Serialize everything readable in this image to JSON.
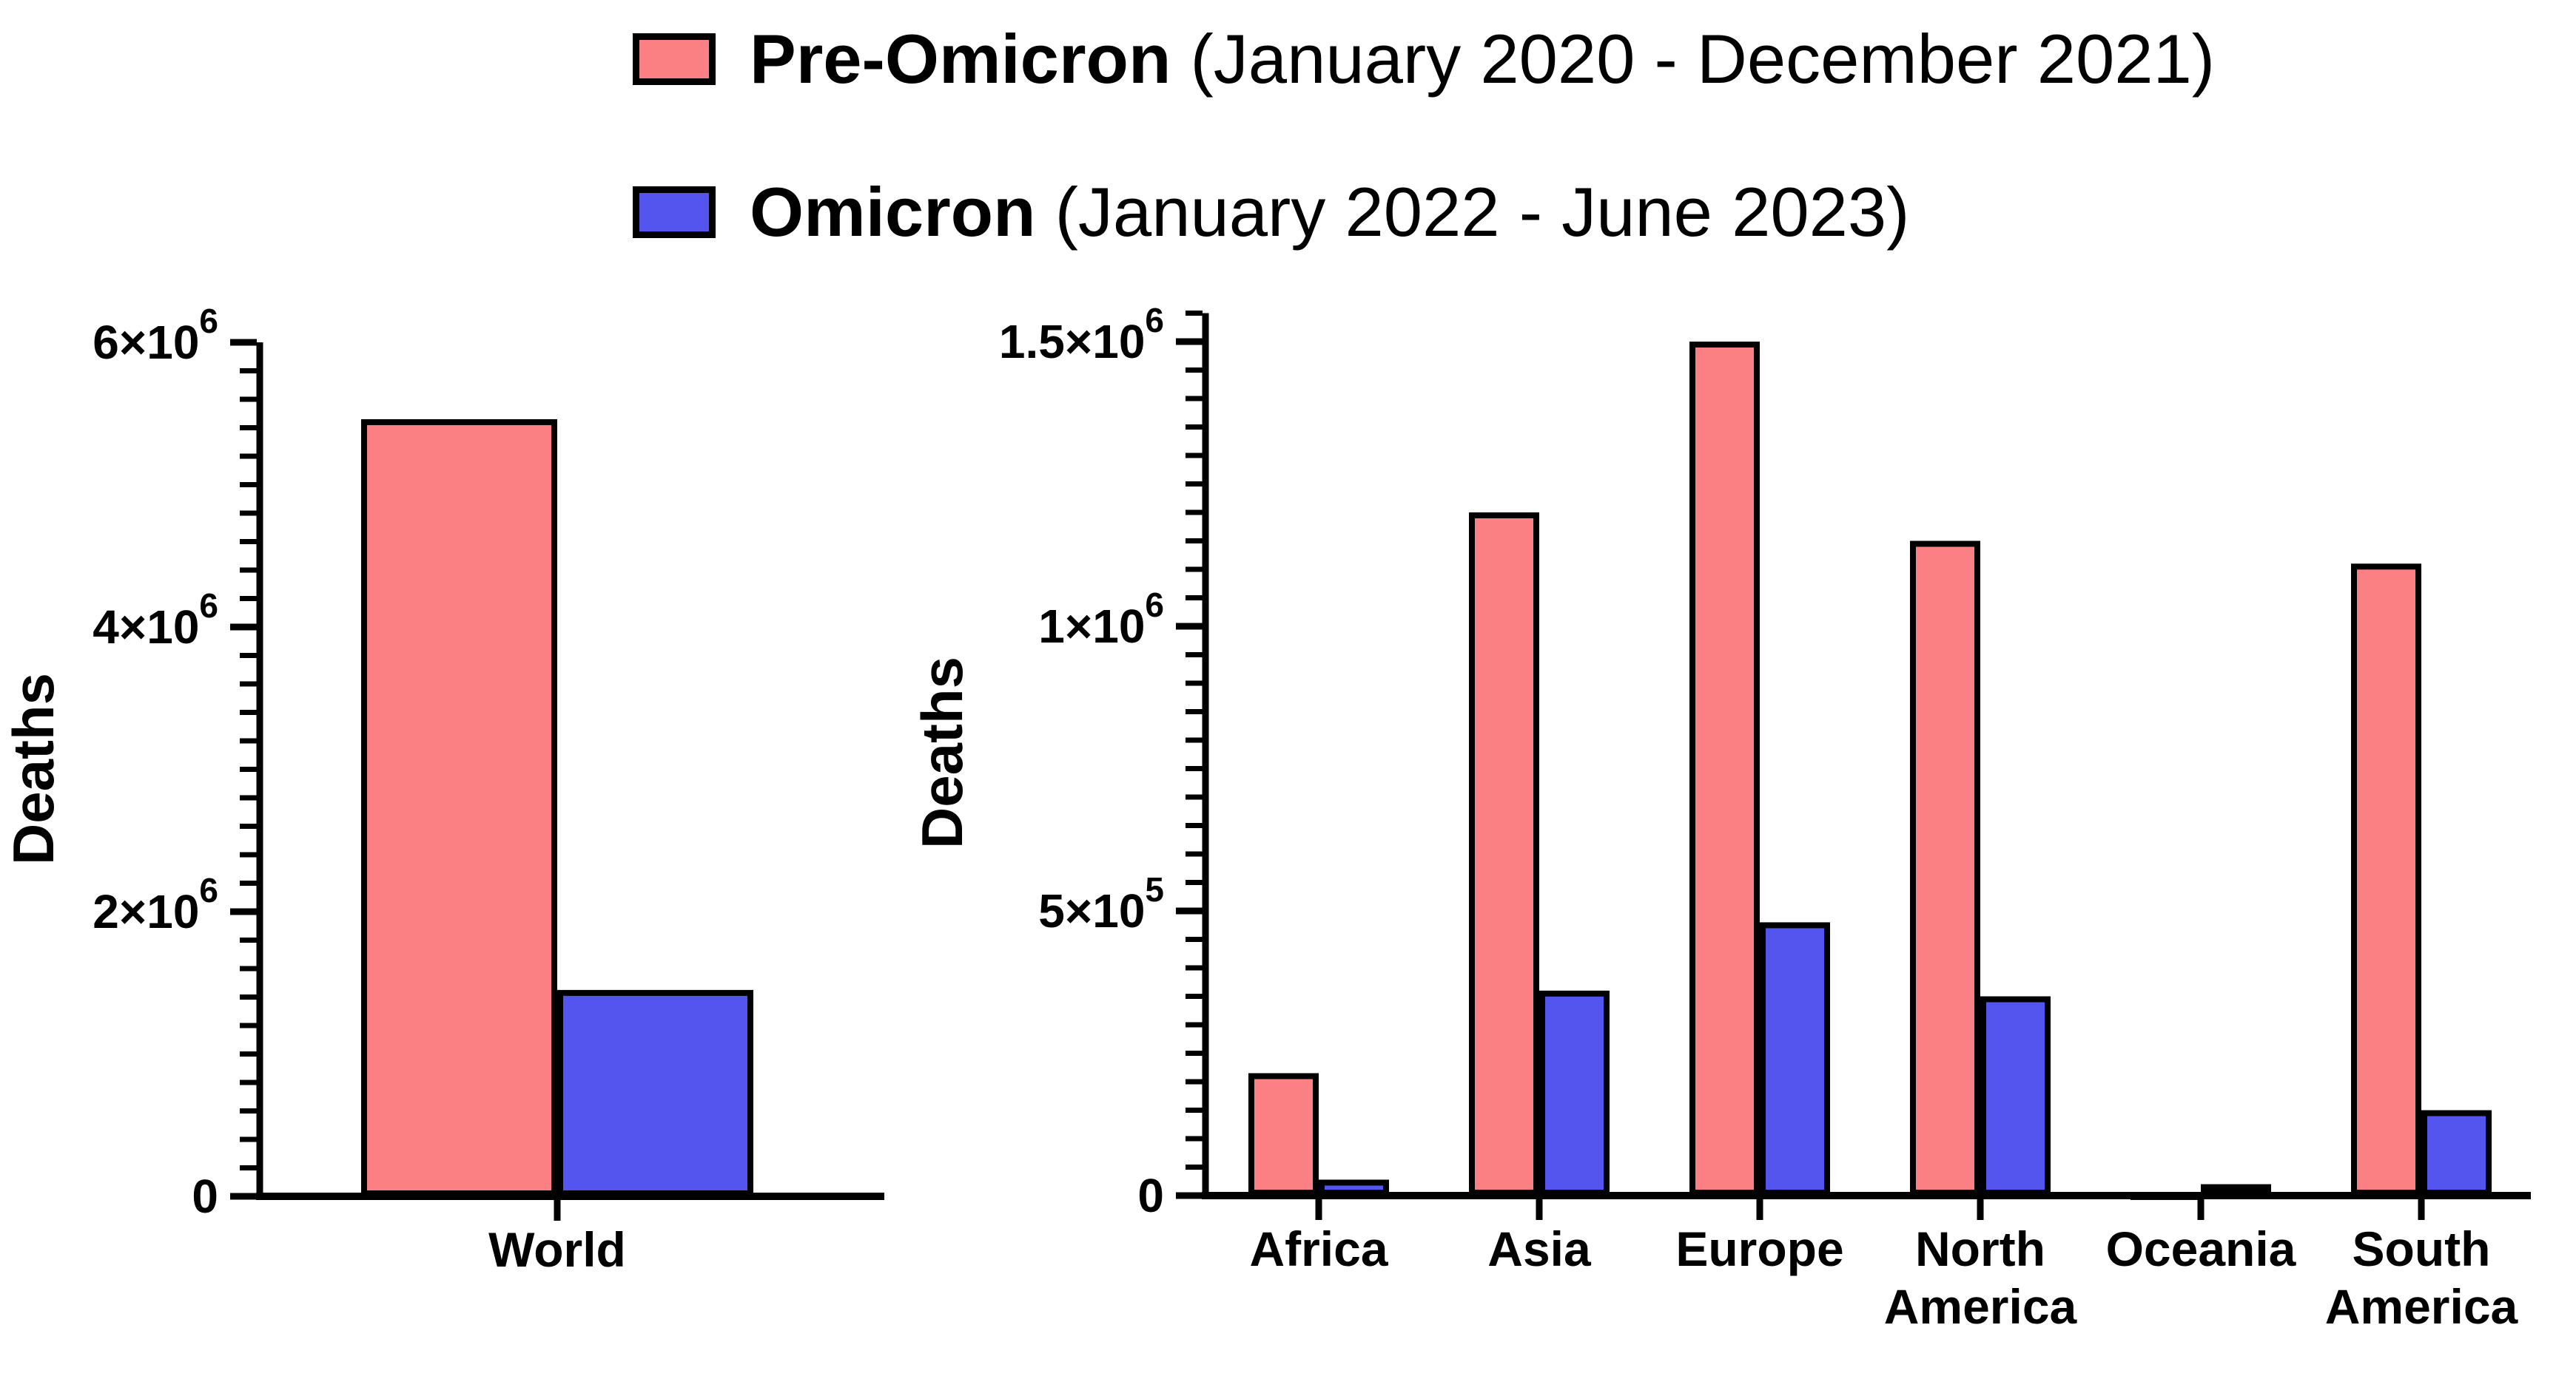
{
  "legend": {
    "items": [
      {
        "name": "Pre-Omicron",
        "period": " (January 2020 - December 2021)",
        "color": "#FA8084"
      },
      {
        "name": "Omicron",
        "period": " (January 2022 - June 2023)",
        "color": "#5355EE"
      }
    ]
  },
  "chart_data": [
    {
      "type": "bar",
      "title": "",
      "xlabel": "",
      "ylabel": "Deaths",
      "categories": [
        "World"
      ],
      "series": [
        {
          "name": "Pre-Omicron (January 2020 - December 2021)",
          "color": "#FA8084",
          "values": [
            5460000
          ]
        },
        {
          "name": "Omicron (January 2022 - June 2023)",
          "color": "#5355EE",
          "values": [
            1450000
          ]
        }
      ],
      "ylim": [
        0,
        6000000
      ],
      "axis_top": 6000000,
      "yticks": [
        {
          "value": 0,
          "label": "0"
        },
        {
          "value": 2000000,
          "label": "2×10^6"
        },
        {
          "value": 4000000,
          "label": "4×10^6"
        },
        {
          "value": 6000000,
          "label": "6×10^6"
        }
      ],
      "minor_tick_interval": 200000,
      "grid": "off",
      "legend_position": "top",
      "bar_outline_color": "#000000"
    },
    {
      "type": "bar",
      "title": "",
      "xlabel": "",
      "ylabel": "Deaths",
      "categories": [
        "Africa",
        "Asia",
        "Europe",
        "North America",
        "Oceania",
        "South America"
      ],
      "series": [
        {
          "name": "Pre-Omicron (January 2020 - December 2021)",
          "color": "#FA8084",
          "values": [
            215000,
            1200000,
            1500000,
            1150000,
            4000,
            1110000
          ]
        },
        {
          "name": "Omicron (January 2022 - June 2023)",
          "color": "#5355EE",
          "values": [
            28000,
            360000,
            480000,
            350000,
            20000,
            150000
          ]
        }
      ],
      "ylim": [
        0,
        1550000
      ],
      "axis_top": 1550000,
      "yticks": [
        {
          "value": 0,
          "label": "0"
        },
        {
          "value": 500000,
          "label": "5×10^5"
        },
        {
          "value": 1000000,
          "label": "1×10^6"
        },
        {
          "value": 1500000,
          "label": "1.5×10^6"
        }
      ],
      "minor_tick_interval": 50000,
      "grid": "off",
      "legend_position": "top",
      "bar_outline_color": "#000000"
    }
  ]
}
